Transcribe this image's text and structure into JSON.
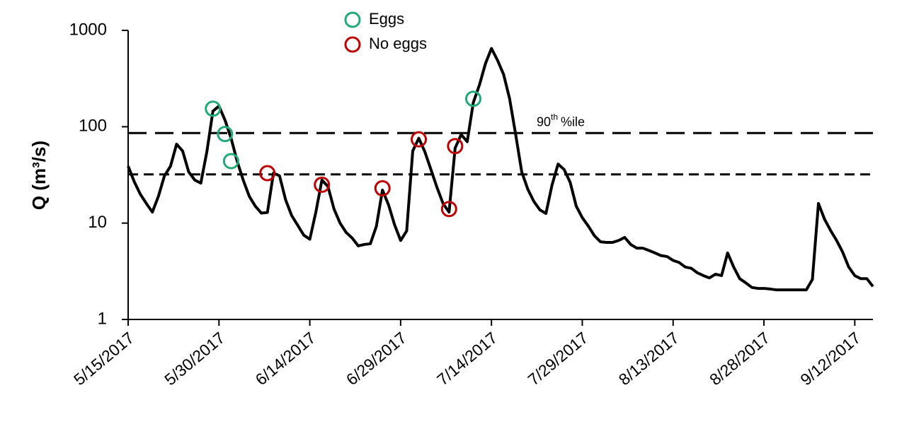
{
  "chart_data": {
    "type": "line",
    "y_label": "Q (m³/s)",
    "log_y": true,
    "ylim": [
      1,
      1000
    ],
    "yticks": [
      1,
      10,
      100,
      1000
    ],
    "xlim": [
      "5/15/2017",
      "9/15/2017"
    ],
    "xticks": [
      "5/15/2017",
      "5/30/2017",
      "6/14/2017",
      "6/29/2017",
      "7/14/2017",
      "7/29/2017",
      "8/13/2017",
      "8/28/2017",
      "9/12/2017"
    ],
    "x": [
      "5/15/2017",
      "5/16/2017",
      "5/17/2017",
      "5/18/2017",
      "5/19/2017",
      "5/20/2017",
      "5/21/2017",
      "5/22/2017",
      "5/23/2017",
      "5/24/2017",
      "5/25/2017",
      "5/26/2017",
      "5/27/2017",
      "5/28/2017",
      "5/29/2017",
      "5/30/2017",
      "5/31/2017",
      "6/1/2017",
      "6/2/2017",
      "6/3/2017",
      "6/4/2017",
      "6/5/2017",
      "6/6/2017",
      "6/7/2017",
      "6/8/2017",
      "6/9/2017",
      "6/10/2017",
      "6/11/2017",
      "6/12/2017",
      "6/13/2017",
      "6/14/2017",
      "6/15/2017",
      "6/16/2017",
      "6/17/2017",
      "6/18/2017",
      "6/19/2017",
      "6/20/2017",
      "6/21/2017",
      "6/22/2017",
      "6/23/2017",
      "6/24/2017",
      "6/25/2017",
      "6/26/2017",
      "6/27/2017",
      "6/28/2017",
      "6/29/2017",
      "6/30/2017",
      "7/1/2017",
      "7/2/2017",
      "7/3/2017",
      "7/4/2017",
      "7/5/2017",
      "7/6/2017",
      "7/7/2017",
      "7/8/2017",
      "7/9/2017",
      "7/10/2017",
      "7/11/2017",
      "7/12/2017",
      "7/13/2017",
      "7/14/2017",
      "7/15/2017",
      "7/16/2017",
      "7/17/2017",
      "7/18/2017",
      "7/19/2017",
      "7/20/2017",
      "7/21/2017",
      "7/22/2017",
      "7/23/2017",
      "7/24/2017",
      "7/25/2017",
      "7/26/2017",
      "7/27/2017",
      "7/28/2017",
      "7/29/2017",
      "7/30/2017",
      "7/31/2017",
      "8/1/2017",
      "8/2/2017",
      "8/3/2017",
      "8/4/2017",
      "8/5/2017",
      "8/6/2017",
      "8/7/2017",
      "8/8/2017",
      "8/9/2017",
      "8/10/2017",
      "8/11/2017",
      "8/12/2017",
      "8/13/2017",
      "8/14/2017",
      "8/15/2017",
      "8/16/2017",
      "8/17/2017",
      "8/18/2017",
      "8/19/2017",
      "8/20/2017",
      "8/21/2017",
      "8/22/2017",
      "8/23/2017",
      "8/24/2017",
      "8/25/2017",
      "8/26/2017",
      "8/27/2017",
      "8/28/2017",
      "8/29/2017",
      "8/30/2017",
      "8/31/2017",
      "9/1/2017",
      "9/2/2017",
      "9/3/2017",
      "9/4/2017",
      "9/5/2017",
      "9/6/2017",
      "9/7/2017",
      "9/8/2017",
      "9/9/2017",
      "9/10/2017",
      "9/11/2017",
      "9/12/2017",
      "9/13/2017",
      "9/14/2017",
      "9/15/2017"
    ],
    "values": [
      39,
      27,
      20,
      16,
      13,
      19,
      31,
      39,
      66,
      56,
      34,
      28,
      26,
      55,
      145,
      164,
      117,
      76,
      44,
      28,
      19,
      15,
      12.7,
      12.9,
      33,
      31,
      17.5,
      12,
      9.5,
      7.5,
      6.8,
      13,
      28,
      24,
      14,
      10,
      8,
      7,
      5.8,
      6,
      6.1,
      9.3,
      22,
      15.5,
      9.6,
      6.6,
      8.3,
      56,
      76,
      55,
      36,
      23.5,
      16,
      13,
      60,
      83,
      70,
      178,
      270,
      450,
      650,
      490,
      350,
      195,
      83,
      34,
      22.5,
      16.8,
      13.7,
      12.6,
      24.8,
      41,
      36,
      26.5,
      15,
      11.4,
      9.3,
      7.4,
      6.4,
      6.3,
      6.3,
      6.6,
      7.1,
      6,
      5.5,
      5.5,
      5.2,
      4.9,
      4.6,
      4.5,
      4.1,
      3.9,
      3.5,
      3.4,
      3.05,
      2.85,
      2.7,
      2.95,
      2.85,
      4.9,
      3.5,
      2.65,
      2.4,
      2.15,
      2.1,
      2.1,
      2.07,
      2.03,
      2.03,
      2.03,
      2.03,
      2.03,
      2.03,
      2.6,
      16,
      11,
      8.4,
      6.6,
      5,
      3.5,
      2.85,
      2.65,
      2.65,
      2.2
    ],
    "color": "#000000",
    "markers": [
      {
        "name": "Eggs",
        "color": "#1faa78",
        "x": [
          "5/29/2017",
          "5/31/2017",
          "6/1/2017",
          "7/11/2017"
        ],
        "values": [
          154,
          84,
          44,
          195
        ]
      },
      {
        "name": "No eggs",
        "color": "#c00000",
        "x": [
          "6/7/2017",
          "6/16/2017",
          "6/26/2017",
          "7/2/2017",
          "7/7/2017",
          "7/8/2017"
        ],
        "values": [
          33,
          25,
          23,
          74,
          14,
          63
        ]
      }
    ],
    "reference_lines": [
      {
        "value": 86,
        "label": {
          "base": "90",
          "sup": "th",
          "tail": "%ile"
        }
      },
      {
        "value": 32
      }
    ]
  }
}
